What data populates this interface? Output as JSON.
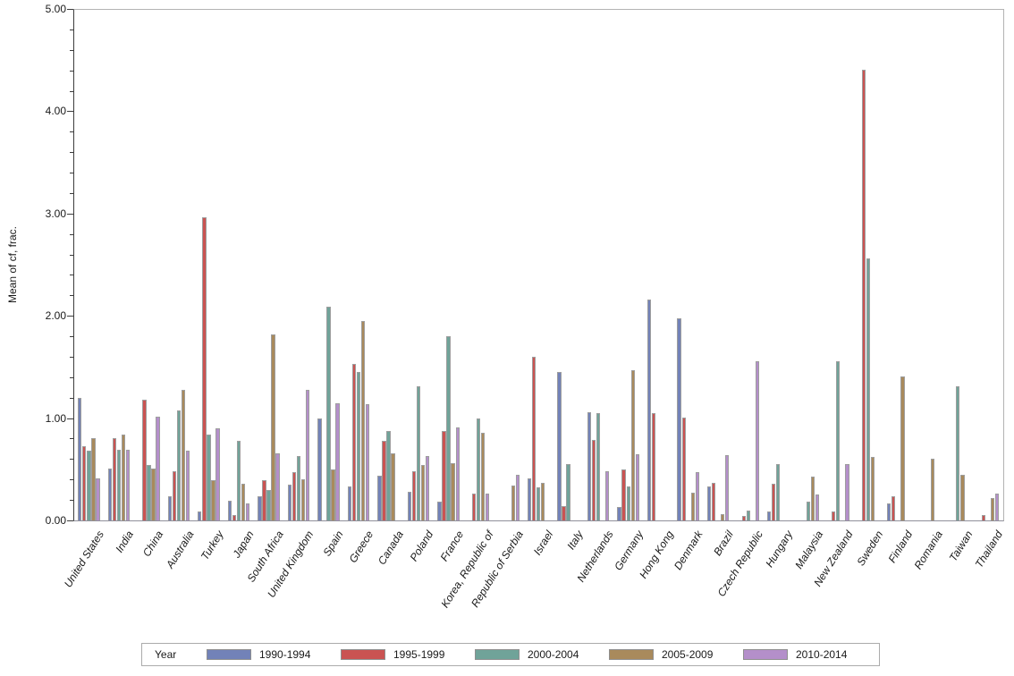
{
  "chart_data": {
    "type": "bar",
    "title": "",
    "xlabel": "",
    "ylabel": "Mean of cf, frac.",
    "ylim": [
      0,
      5
    ],
    "y_major_ticks": [
      0,
      1,
      2,
      3,
      4,
      5
    ],
    "y_tick_labels": [
      "0.00",
      "1.00",
      "2.00",
      "3.00",
      "4.00",
      "5.00"
    ],
    "y_minor_tick_step": 0.2,
    "grid": false,
    "legend_position": "bottom",
    "legend_title": "Year",
    "categories": [
      "United States",
      "India",
      "China",
      "Australia",
      "Turkey",
      "Japan",
      "South Africa",
      "United Kingdom",
      "Spain",
      "Greece",
      "Canada",
      "Poland",
      "France",
      "Korea, Republic of",
      "Republic of Serbia",
      "Israel",
      "Italy",
      "Netherlands",
      "Germany",
      "Hong Kong",
      "Denmark",
      "Brazil",
      "Czech Republic",
      "Hungary",
      "Malaysia",
      "New Zealand",
      "Sweden",
      "Finland",
      "Romania",
      "Taiwan",
      "Thailand"
    ],
    "series": [
      {
        "name": "1990-1994",
        "color": "#7282b8",
        "values": [
          1.2,
          0.51,
          0,
          0.24,
          0.09,
          0.19,
          0.24,
          0.35,
          1.0,
          0.33,
          0.44,
          0.28,
          0.18,
          0,
          0,
          0.41,
          1.45,
          1.06,
          0.13,
          2.16,
          1.98,
          0.33,
          0,
          0.09,
          0,
          0,
          0,
          0.17,
          0,
          0,
          0
        ]
      },
      {
        "name": "1995-1999",
        "color": "#ca5352",
        "values": [
          0.73,
          0.81,
          1.18,
          0.48,
          2.97,
          0.05,
          0.39,
          0.47,
          0,
          1.53,
          0.78,
          0.48,
          0.88,
          0.26,
          0,
          1.6,
          0.14,
          0.79,
          0.5,
          1.05,
          1.01,
          0.37,
          0.04,
          0.36,
          0,
          0.09,
          4.41,
          0.24,
          0,
          0,
          0.05
        ]
      },
      {
        "name": "2000-2004",
        "color": "#70a399",
        "values": [
          0.68,
          0.69,
          0.54,
          1.08,
          0.84,
          0.78,
          0.3,
          0.63,
          2.09,
          1.45,
          0.88,
          1.31,
          1.8,
          1.0,
          0,
          0.32,
          0.55,
          1.05,
          0.33,
          0,
          0,
          0,
          0.1,
          0.55,
          0.18,
          1.56,
          2.57,
          0,
          0,
          1.31,
          0
        ]
      },
      {
        "name": "2005-2009",
        "color": "#a98a5c",
        "values": [
          0.81,
          0.84,
          0.51,
          1.28,
          0.39,
          0.36,
          1.82,
          0.4,
          0.5,
          1.95,
          0.66,
          0.54,
          0.56,
          0.86,
          0.34,
          0.37,
          0,
          0,
          1.47,
          0,
          0.27,
          0.06,
          0,
          0,
          0.43,
          0,
          0.62,
          1.41,
          0.6,
          0.45,
          0.22
        ]
      },
      {
        "name": "2010-2014",
        "color": "#b48fca",
        "values": [
          0.41,
          0.69,
          1.02,
          0.68,
          0.9,
          0.17,
          0.66,
          1.28,
          1.15,
          1.14,
          0,
          0.63,
          0.91,
          0.26,
          0.45,
          0,
          0,
          0.48,
          0.65,
          0,
          0.47,
          0.64,
          1.56,
          0,
          0.25,
          0.55,
          0,
          0,
          0,
          0,
          0.26
        ]
      }
    ]
  }
}
